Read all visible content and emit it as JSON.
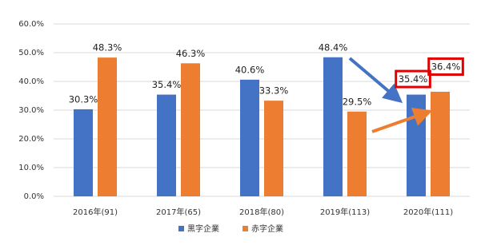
{
  "chart_data": {
    "type": "bar",
    "categories": [
      "2016年(91)",
      "2017年(65)",
      "2018年(80)",
      "2019年(113)",
      "2020年(111)"
    ],
    "series": [
      {
        "name": "黒字企業",
        "color": "#4472c4",
        "values": [
          30.3,
          35.4,
          40.6,
          48.4,
          35.4
        ],
        "value_labels": [
          "30.3%",
          "35.4%",
          "40.6%",
          "48.4%",
          "35.4%"
        ]
      },
      {
        "name": "赤字企業",
        "color": "#ed7d31",
        "values": [
          48.3,
          46.3,
          33.3,
          29.5,
          36.4
        ],
        "value_labels": [
          "48.3%",
          "46.3%",
          "33.3%",
          "29.5%",
          "36.4%"
        ]
      }
    ],
    "ylim": [
      0,
      60
    ],
    "yticks": [
      {
        "value": 0,
        "label": "0.0%"
      },
      {
        "value": 10,
        "label": "10.0%"
      },
      {
        "value": 20,
        "label": "20.0%"
      },
      {
        "value": 30,
        "label": "30.0%"
      },
      {
        "value": 40,
        "label": "40.0%"
      },
      {
        "value": 50,
        "label": "50.0%"
      },
      {
        "value": 60,
        "label": "60.0%"
      }
    ],
    "grid": true,
    "legend": "bottom"
  }
}
